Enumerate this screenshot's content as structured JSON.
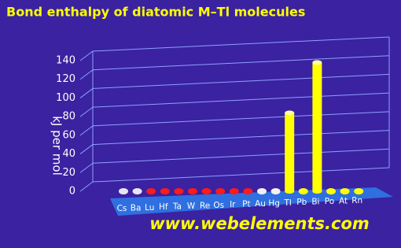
{
  "chart_data": {
    "type": "bar",
    "title": "Bond enthalpy of diatomic M–Tl molecules",
    "y_label": "kJ per mol",
    "categories": [
      "Cs",
      "Ba",
      "Lu",
      "Hf",
      "Ta",
      "W",
      "Re",
      "Os",
      "Ir",
      "Pt",
      "Au",
      "Hg",
      "Tl",
      "Pb",
      "Bi",
      "Po",
      "At",
      "Rn"
    ],
    "values": [
      null,
      null,
      null,
      null,
      null,
      null,
      null,
      null,
      null,
      null,
      null,
      null,
      84,
      null,
      138,
      null,
      null,
      null
    ],
    "colors": [
      "#e6e6f0",
      "#e6e6f0",
      "#ff1a1a",
      "#ff1a1a",
      "#ff1a1a",
      "#ff1a1a",
      "#ff1a1a",
      "#ff1a1a",
      "#ff1a1a",
      "#ff1a1a",
      "#f0f0f0",
      "#f0f0f0",
      "#ffff00",
      "#ffff00",
      "#ffff00",
      "#ffff00",
      "#ffff00",
      "#ffff00"
    ],
    "ylim": [
      0,
      140
    ],
    "yticks": [
      0,
      20,
      40,
      60,
      80,
      100,
      120,
      140
    ],
    "grid": true
  },
  "watermark": "www.webelements.com"
}
